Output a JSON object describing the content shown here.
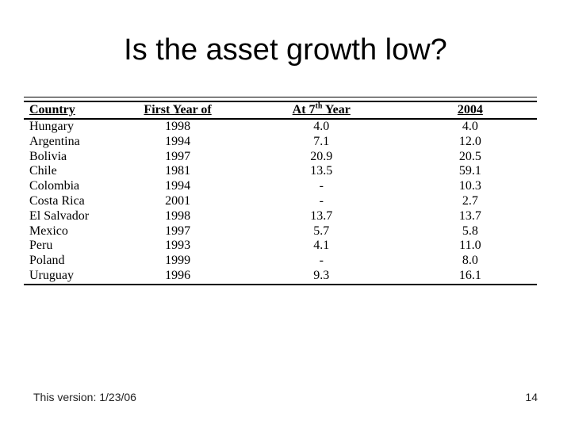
{
  "slide": {
    "title": "Is the asset growth low?",
    "footer": {
      "version_text": "This version: 1/23/06",
      "page_number": "14"
    }
  },
  "table": {
    "headers": [
      "Country",
      "First Year of",
      {
        "pre": "At 7",
        "sup": "th",
        "post": " Year"
      },
      "2004"
    ],
    "rows": [
      [
        "Hungary",
        "1998",
        "4.0",
        "4.0"
      ],
      [
        "Argentina",
        "1994",
        "7.1",
        "12.0"
      ],
      [
        "Bolivia",
        "1997",
        "20.9",
        "20.5"
      ],
      [
        "Chile",
        "1981",
        "13.5",
        "59.1"
      ],
      [
        "Colombia",
        "1994",
        "-",
        "10.3"
      ],
      [
        "Costa Rica",
        "2001",
        "-",
        "2.7"
      ],
      [
        "El Salvador",
        "1998",
        "13.7",
        "13.7"
      ],
      [
        "Mexico",
        "1997",
        "5.7",
        "5.8"
      ],
      [
        "Peru",
        "1993",
        "4.1",
        "11.0"
      ],
      [
        "Poland",
        "1999",
        "-",
        "8.0"
      ],
      [
        "Uruguay",
        "1996",
        "9.3",
        "16.1"
      ]
    ]
  },
  "colors": {
    "text": "#000000",
    "background": "#ffffff",
    "footer_text": "#222222"
  }
}
